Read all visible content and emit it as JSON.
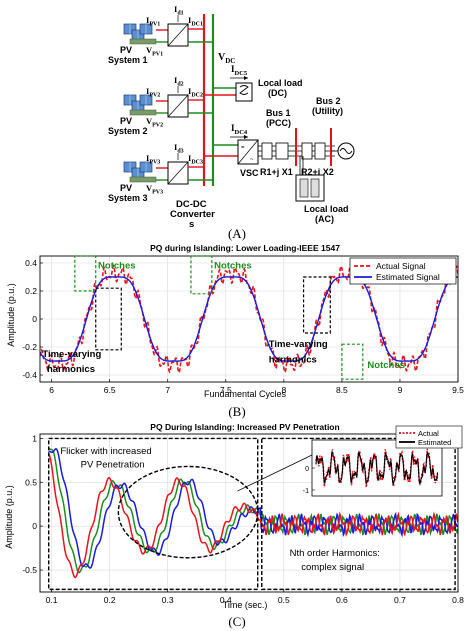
{
  "panel_a": {
    "caption": "(A)",
    "pv_systems": [
      {
        "label_1": "PV",
        "label_2": "System 1",
        "current": "I",
        "current_sub": "PV1",
        "voltage": "V",
        "voltage_sub": "PV1",
        "id": "I",
        "id_sub": "d1",
        "dc": "I",
        "dc_sub": "DC1"
      },
      {
        "label_1": "PV",
        "label_2": "System 2",
        "current": "I",
        "current_sub": "PV2",
        "voltage": "V",
        "voltage_sub": "PV2",
        "id": "I",
        "id_sub": "d2",
        "dc": "I",
        "dc_sub": "DC2"
      },
      {
        "label_1": "PV",
        "label_2": "System 3",
        "current": "I",
        "current_sub": "PV3",
        "voltage": "V",
        "voltage_sub": "PV3",
        "id": "I",
        "id_sub": "d3",
        "dc": "I",
        "dc_sub": "DC3"
      }
    ],
    "converter_label_1": "DC-DC",
    "converter_label_2": "Converter",
    "converter_label_3": "s",
    "vdc": "V",
    "vdc_sub": "DC",
    "idc5": "I",
    "idc5_sub": "DC5",
    "idc4": "I",
    "idc4_sub": "DC4",
    "local_load_dc_1": "Local load",
    "local_load_dc_2": "(DC)",
    "vsc": "VSC",
    "r1x1": "R1+j X1",
    "r2x2": "R2+j X2",
    "bus1_1": "Bus 1",
    "bus1_2": "(PCC)",
    "bus2_1": "Bus 2",
    "bus2_2": "(Utility)",
    "local_load_ac_1": "Local load",
    "local_load_ac_2": "(AC)"
  },
  "panel_b": {
    "caption": "(B)",
    "chart_data": {
      "type": "line",
      "title": "PQ during Islanding: Lower Loading-IEEE 1547",
      "xlabel": "Fundamental Cycles",
      "ylabel": "Amplitude (p.u.)",
      "xlim": [
        5.9,
        9.5
      ],
      "ylim": [
        -0.45,
        0.45
      ],
      "xticks": [
        "6",
        "6.5",
        "7",
        "7.5",
        "8",
        "8.5",
        "9",
        "9.5"
      ],
      "yticks": [
        "0.4",
        "0.2",
        "0",
        "-0.2",
        "-0.4"
      ],
      "xtick_values": [
        6,
        6.5,
        7,
        7.5,
        8,
        8.5,
        9,
        9.5
      ],
      "ytick_values": [
        0.4,
        0.2,
        0,
        -0.2,
        -0.4
      ],
      "grid": true,
      "legend_position": "top-right",
      "series": [
        {
          "name": "Actual Signal",
          "color": "#e8141c",
          "style": "dashed",
          "amplitude": 0.36,
          "noise": 0.04
        },
        {
          "name": "Estimated Signal",
          "color": "#1a1adc",
          "style": "solid",
          "amplitude": 0.34,
          "noise": 0.0
        }
      ],
      "frequency_cycles_per_unit": 1.0,
      "annotations": [
        {
          "text": "Notches",
          "color": "#1f8c1f"
        },
        {
          "text": "Notches",
          "color": "#1f8c1f"
        },
        {
          "text": "Notches",
          "color": "#1f8c1f"
        },
        {
          "text": "Time-varying",
          "text2": "harmonics",
          "color": "#000000"
        },
        {
          "text": "Time-varying",
          "text2": "harmonics",
          "color": "#000000"
        }
      ]
    }
  },
  "panel_c": {
    "caption": "(C)",
    "chart_data": {
      "type": "line",
      "title": "PQ During Islanding: Increased PV Penetration",
      "xlabel": "Time (sec.)",
      "ylabel": "Amplitude (p.u.)",
      "xlim": [
        0.08,
        0.8
      ],
      "ylim": [
        -0.75,
        1.05
      ],
      "xticks": [
        "0.1",
        "0.2",
        "0.3",
        "0.4",
        "0.5",
        "0.6",
        "0.7",
        "0.8"
      ],
      "yticks": [
        "1",
        "0.5",
        "0",
        "-0.5"
      ],
      "xtick_values": [
        0.1,
        0.2,
        0.3,
        0.4,
        0.5,
        0.6,
        0.7,
        0.8
      ],
      "ytick_values": [
        1,
        0.5,
        0,
        -0.5
      ],
      "grid": true,
      "legend_position": "top-right",
      "series": [
        {
          "name": "",
          "color": "#1f8c1f"
        },
        {
          "name": "",
          "color": "#1a1adc"
        },
        {
          "name": "",
          "color": "#e8141c"
        }
      ],
      "legend": [
        {
          "name": "Actual",
          "color": "#e8141c",
          "style": "dotted"
        },
        {
          "name": "Estimated",
          "color": "#000000",
          "style": "solid"
        }
      ],
      "inset": {
        "yticks": [
          "0",
          "-1"
        ],
        "ytick_values": [
          0,
          -1
        ]
      },
      "annotations": [
        {
          "text": "Flicker with increased",
          "text2": "PV Penetration"
        },
        {
          "text": "Nth order Harmonics:",
          "text2": "complex signal"
        }
      ]
    }
  }
}
